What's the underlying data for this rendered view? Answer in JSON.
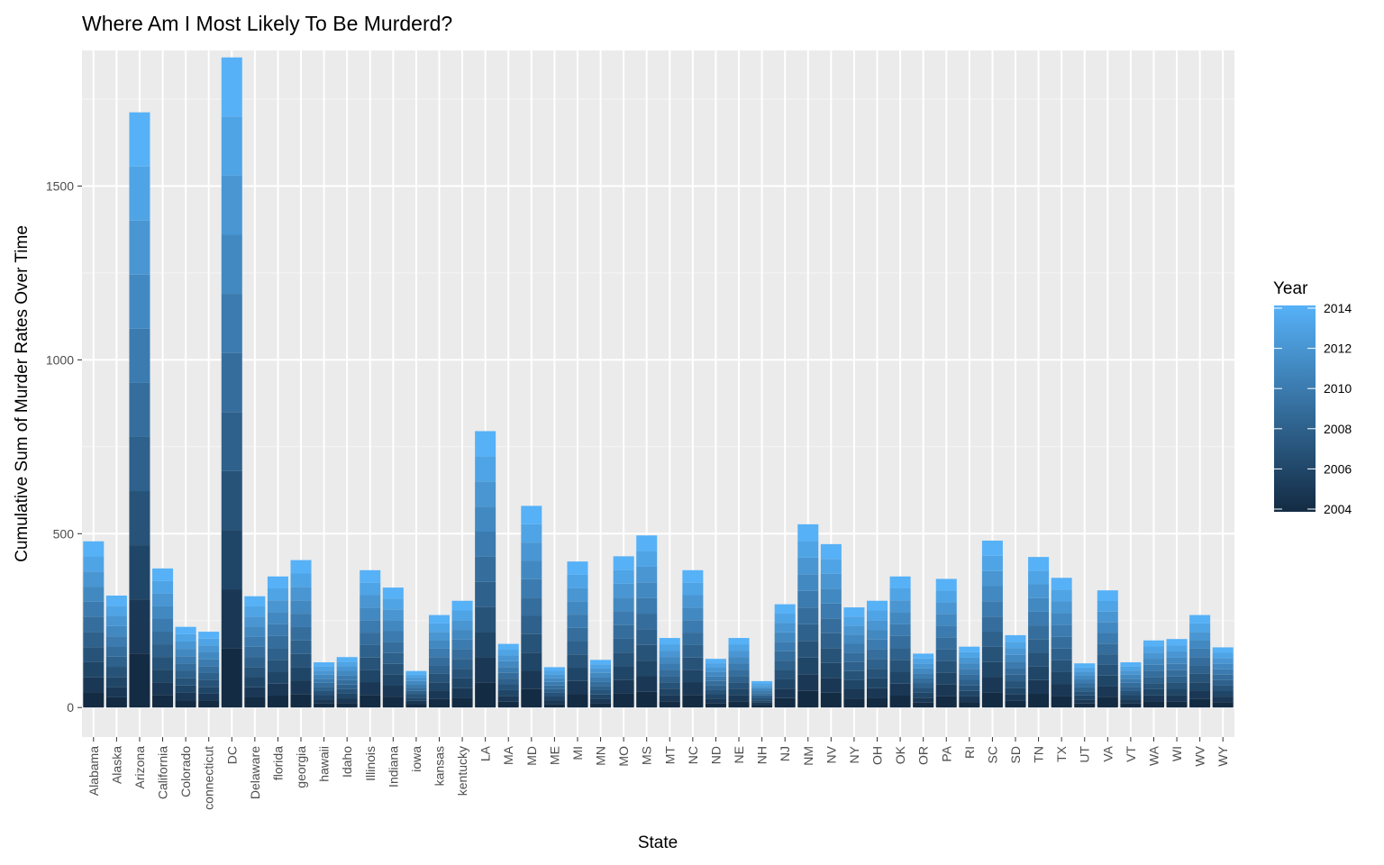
{
  "chart_data": {
    "type": "bar",
    "stacked": true,
    "title": "Where Am I Most Likely To Be Murderd?",
    "xlabel": "State",
    "ylabel": "Cumulative Sum of Murder Rates Over Time",
    "ylim": [
      -85,
      1890
    ],
    "yticks": [
      0,
      500,
      1000,
      1500
    ],
    "grid": true,
    "legend": {
      "title": "Year",
      "position": "right",
      "labels": [
        "2014",
        "2012",
        "2010",
        "2008",
        "2006",
        "2004"
      ],
      "range": [
        2004,
        2014
      ],
      "colors": [
        "#132B43",
        "#56B1F7"
      ]
    },
    "stack_years": [
      2004,
      2005,
      2006,
      2007,
      2008,
      2009,
      2010,
      2011,
      2012,
      2013,
      2014
    ],
    "categories": [
      "Alabama",
      "Alaska",
      "Arizona",
      "California",
      "Colorado",
      "connecticut",
      "DC",
      "Delaware",
      "florida",
      "georgia",
      "hawaii",
      "Idaho",
      "Illinois",
      "Indiana",
      "iowa",
      "kansas",
      "kentucky",
      "LA",
      "MA",
      "MD",
      "ME",
      "MI",
      "MN",
      "MO",
      "MS",
      "MT",
      "NC",
      "ND",
      "NE",
      "NH",
      "NJ",
      "NM",
      "NV",
      "NY",
      "OH",
      "OK",
      "OR",
      "PA",
      "RI",
      "SC",
      "SD",
      "TN",
      "TX",
      "UT",
      "VA",
      "VT",
      "WA",
      "WI",
      "WV",
      "WY"
    ],
    "values": [
      478,
      322,
      1712,
      400,
      232,
      218,
      1870,
      320,
      377,
      424,
      130,
      145,
      395,
      345,
      105,
      266,
      307,
      795,
      183,
      580,
      116,
      420,
      137,
      435,
      495,
      200,
      395,
      140,
      200,
      76,
      297,
      527,
      470,
      288,
      307,
      377,
      155,
      370,
      175,
      480,
      208,
      433,
      373,
      127,
      337,
      130,
      193,
      197,
      266,
      173
    ]
  }
}
